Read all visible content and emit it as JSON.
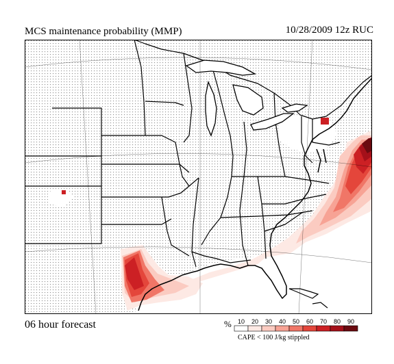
{
  "header": {
    "title": "MCS maintenance probability (MMP)",
    "datestamp": "10/28/2009  12z  RUC"
  },
  "footer": {
    "forecast": "06 hour forecast",
    "legend_unit": "%",
    "legend_note": "CAPE < 100 J/kg stippled"
  },
  "legend": {
    "levels": [
      "10",
      "20",
      "30",
      "40",
      "50",
      "60",
      "70",
      "80",
      "90"
    ],
    "colors": [
      "#ffffff",
      "#fde9e4",
      "#fbcbc1",
      "#f7a395",
      "#f07667",
      "#e4463b",
      "#cc2024",
      "#a5101a",
      "#6b0a10"
    ]
  },
  "map": {
    "region": "Central and Eastern United States",
    "stipple_color": "#888888",
    "outline_color": "#000000"
  }
}
